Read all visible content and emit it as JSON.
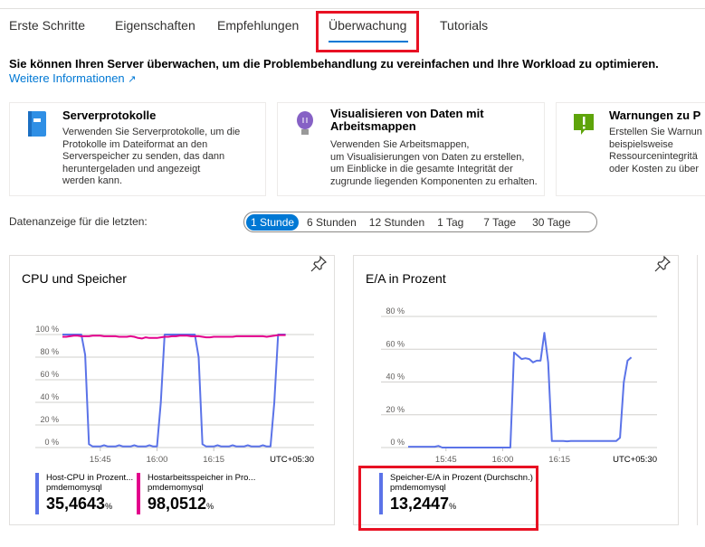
{
  "tabs": [
    {
      "label": "Erste Schritte"
    },
    {
      "label": "Eigenschaften"
    },
    {
      "label": "Empfehlungen"
    },
    {
      "label": "Überwachung",
      "active": true
    },
    {
      "label": "Tutorials"
    }
  ],
  "intro": "Sie können Ihren Server überwachen, um die Problembehandlung zu vereinfachen und Ihre Workload zu optimieren.",
  "more_link": "Weitere Informationen",
  "cards": [
    {
      "icon": "book-icon",
      "title": "Serverprotokolle",
      "lines": [
        "Verwenden Sie Serverprotokolle, um die",
        "Protokolle im Dateiformat an den",
        "Serverspeicher zu senden, das dann",
        "heruntergeladen und angezeigt",
        "werden kann."
      ]
    },
    {
      "icon": "lightbulb-icon",
      "title": "Visualisieren von Daten mit",
      "title2": "Arbeitsmappen",
      "lines": [
        "Verwenden Sie Arbeitsmappen,",
        "um Visualisierungen von Daten zu erstellen,",
        "um Einblicke in die gesamte Integrität der",
        "zugrunde liegenden Komponenten zu erhalten."
      ]
    },
    {
      "icon": "alert-icon",
      "title": "Warnungen zu P",
      "lines": [
        "Erstellen Sie Warnun",
        "beispielsweise",
        "Ressourcenintegritä",
        "oder Kosten zu über"
      ]
    }
  ],
  "range": {
    "label": "Datenanzeige für die letzten:",
    "options": [
      "1 Stunde",
      "6 Stunden",
      "12 Stunden",
      "1 Tag",
      "7 Tage",
      "30 Tage"
    ],
    "selected": "1 Stunde"
  },
  "colors": {
    "accent": "#0078d4",
    "cpu": "#5b73e8",
    "memory": "#e3008c",
    "highlight": "#e81123"
  },
  "chart_data": [
    {
      "type": "line",
      "title": "CPU und Speicher",
      "ylim": [
        0,
        100
      ],
      "yticks": [
        "0 %",
        "20 %",
        "40 %",
        "60 %",
        "80 %",
        "100 %"
      ],
      "xticks": [
        "15:45",
        "16:00",
        "16:15"
      ],
      "timezone": "UTC+05:30",
      "grid": true,
      "x_start": "15:35",
      "x_step_minutes": 1,
      "series": [
        {
          "name": "Host-CPU in Prozent...",
          "resource": "pmdemomysql",
          "value": "35,4643",
          "unit": "%",
          "color": "#5b73e8",
          "values": [
            100,
            100,
            100,
            100,
            100,
            100,
            82,
            3,
            1,
            1,
            1,
            2,
            1,
            1,
            1,
            2,
            1,
            1,
            1,
            2,
            1,
            1,
            1,
            2,
            1,
            1,
            40,
            100,
            100,
            100,
            100,
            100,
            100,
            100,
            100,
            100,
            80,
            3,
            1,
            1,
            1,
            2,
            1,
            1,
            1,
            2,
            1,
            1,
            1,
            2,
            1,
            1,
            1,
            2,
            1,
            1,
            40,
            100,
            100,
            100
          ]
        },
        {
          "name": "Hostarbeitsspeicher in Pro...",
          "resource": "pmdemomysql",
          "value": "98,0512",
          "unit": "%",
          "color": "#e3008c",
          "values": [
            98,
            98,
            98.5,
            99,
            99,
            98.5,
            98.5,
            98.5,
            99,
            99,
            99,
            98.5,
            98.5,
            98.5,
            98.5,
            98,
            98,
            98,
            98.5,
            98,
            97,
            96.5,
            97.5,
            97,
            97,
            97,
            97.5,
            98,
            98,
            98.5,
            98.5,
            99,
            99,
            99,
            98.5,
            98.5,
            98.5,
            98,
            97.5,
            97.5,
            98,
            98,
            98,
            98,
            98,
            98,
            98.5,
            98.5,
            98.5,
            98.5,
            98.5,
            98.5,
            98.5,
            98.5,
            98,
            98.5,
            99,
            99.5,
            99.5,
            99.5
          ]
        }
      ]
    },
    {
      "type": "line",
      "title": "E/A in Prozent",
      "ylim": [
        0,
        80
      ],
      "yticks": [
        "0 %",
        "20 %",
        "40 %",
        "60 %",
        "80 %"
      ],
      "xticks": [
        "15:45",
        "16:00",
        "16:15"
      ],
      "timezone": "UTC+05:30",
      "grid": true,
      "x_start": "15:35",
      "x_step_minutes": 1,
      "series": [
        {
          "name": "Speicher-E/A in Prozent (Durchschn.)",
          "resource": "pmdemomysql",
          "value": "13,2447",
          "unit": "%",
          "color": "#5b73e8",
          "values": [
            0.5,
            0.5,
            0.5,
            0.5,
            0.5,
            0.5,
            0.5,
            0.5,
            1,
            0,
            0,
            0,
            0,
            0,
            0,
            0,
            0,
            0,
            0,
            0,
            0,
            0,
            0,
            0,
            0,
            0,
            0,
            0,
            58,
            56,
            54,
            54.5,
            54,
            52,
            53,
            53,
            70,
            52,
            4,
            4,
            4,
            4,
            3.8,
            4,
            4,
            4,
            4,
            4,
            4,
            4,
            4,
            4,
            4,
            4,
            4,
            4,
            6,
            40,
            53,
            55
          ]
        }
      ]
    }
  ]
}
